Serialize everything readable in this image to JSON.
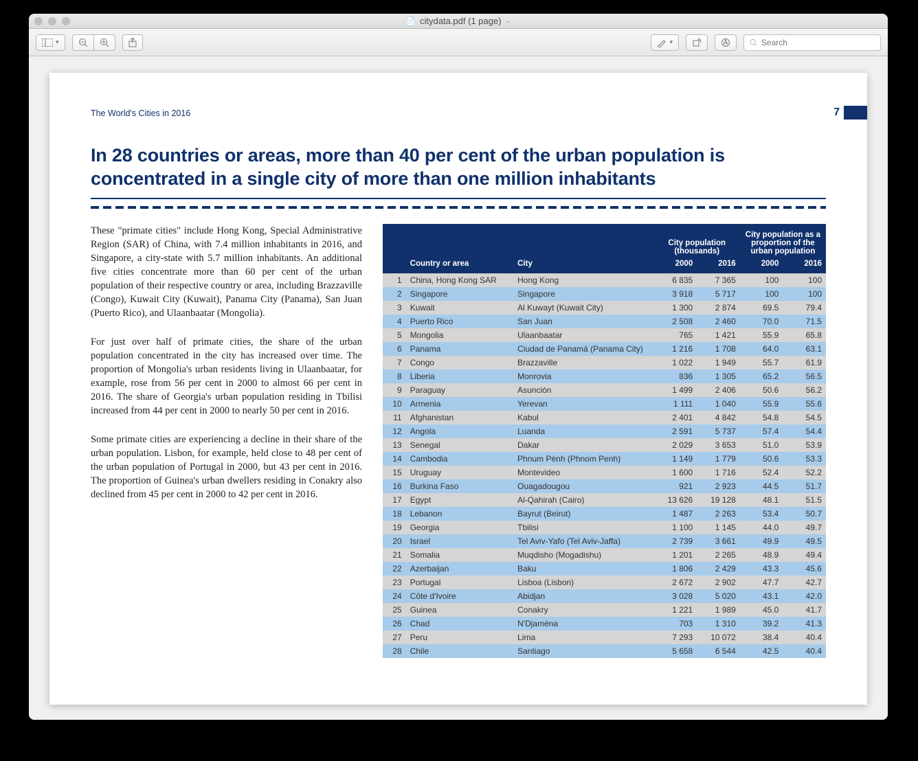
{
  "window": {
    "title": "citydata.pdf (1 page)",
    "search_placeholder": "Search"
  },
  "doc": {
    "running_header": "The World's Cities in 2016",
    "page_number": "7",
    "headline": "In 28 countries or areas, more than 40 per cent of the urban population is concentrated in a single city of more than one million inhabitants",
    "paragraphs": [
      "These \"primate cities\" include Hong Kong, Special Administrative Region (SAR) of China, with 7.4 million inhabitants in 2016, and Singapore, a city-state with 5.7 million inhabitants.  An additional five cities concentrate more than 60 per cent of the urban population of their respective country or area, including Brazzaville (Congo), Kuwait City (Kuwait), Panama City (Panama), San Juan (Puerto Rico), and Ulaanbaatar (Mongolia).",
      "For just over half of primate cities, the share of the urban population concentrated in the city has increased over time.  The proportion of Mongolia's urban residents living in Ulaanbaatar, for example, rose from 56 per cent in 2000 to almost 66 per cent in 2016.  The share of Georgia's urban population residing in Tbilisi increased from 44 per cent in 2000 to nearly 50 per cent in 2016.",
      "Some primate cities are experiencing a decline in their share of the urban population.  Lisbon, for example, held close to 48 per cent of the urban population of Portugal in 2000, but 43 per cent in 2016.  The proportion of Guinea's urban dwellers residing in Conakry also declined from 45 per cent in 2000 to 42 per cent in 2016."
    ],
    "table": {
      "group_headers": [
        "City population (thousands)",
        "City population as a proportion of the urban population"
      ],
      "columns": [
        "Country or area",
        "City",
        "2000",
        "2016",
        "2000",
        "2016"
      ],
      "row_colors": {
        "odd": "#d5d5d5",
        "even": "#a7cbea"
      },
      "header_bg": "#10316b",
      "rows": [
        {
          "n": 1,
          "country": "China, Hong Kong SAR",
          "city": "Hong Kong",
          "p2000": "6 835",
          "p2016": "7 365",
          "s2000": "100",
          "s2016": "100"
        },
        {
          "n": 2,
          "country": "Singapore",
          "city": "Singapore",
          "p2000": "3 918",
          "p2016": "5 717",
          "s2000": "100",
          "s2016": "100"
        },
        {
          "n": 3,
          "country": "Kuwait",
          "city": "Al Kuwayt (Kuwait City)",
          "p2000": "1 300",
          "p2016": "2 874",
          "s2000": "69.5",
          "s2016": "79.4"
        },
        {
          "n": 4,
          "country": "Puerto Rico",
          "city": "San Juan",
          "p2000": "2 508",
          "p2016": "2 460",
          "s2000": "70.0",
          "s2016": "71.5"
        },
        {
          "n": 5,
          "country": "Mongolia",
          "city": "Ulaanbaatar",
          "p2000": "765",
          "p2016": "1 421",
          "s2000": "55.9",
          "s2016": "65.8"
        },
        {
          "n": 6,
          "country": "Panama",
          "city": "Ciudad de Panamá (Panama City)",
          "p2000": "1 216",
          "p2016": "1 708",
          "s2000": "64.0",
          "s2016": "63.1"
        },
        {
          "n": 7,
          "country": "Congo",
          "city": "Brazzaville",
          "p2000": "1 022",
          "p2016": "1 949",
          "s2000": "55.7",
          "s2016": "61.9"
        },
        {
          "n": 8,
          "country": "Liberia",
          "city": "Monrovia",
          "p2000": "836",
          "p2016": "1 305",
          "s2000": "65.2",
          "s2016": "56.5"
        },
        {
          "n": 9,
          "country": "Paraguay",
          "city": "Asunción",
          "p2000": "1 499",
          "p2016": "2 406",
          "s2000": "50.6",
          "s2016": "56.2"
        },
        {
          "n": 10,
          "country": "Armenia",
          "city": "Yerevan",
          "p2000": "1 111",
          "p2016": "1 040",
          "s2000": "55.9",
          "s2016": "55.6"
        },
        {
          "n": 11,
          "country": "Afghanistan",
          "city": "Kabul",
          "p2000": "2 401",
          "p2016": "4 842",
          "s2000": "54.8",
          "s2016": "54.5"
        },
        {
          "n": 12,
          "country": "Angola",
          "city": "Luanda",
          "p2000": "2 591",
          "p2016": "5 737",
          "s2000": "57.4",
          "s2016": "54.4"
        },
        {
          "n": 13,
          "country": "Senegal",
          "city": "Dakar",
          "p2000": "2 029",
          "p2016": "3 653",
          "s2000": "51.0",
          "s2016": "53.9"
        },
        {
          "n": 14,
          "country": "Cambodia",
          "city": "Phnum Pénh (Phnom Penh)",
          "p2000": "1 149",
          "p2016": "1 779",
          "s2000": "50.6",
          "s2016": "53.3"
        },
        {
          "n": 15,
          "country": "Uruguay",
          "city": "Montevideo",
          "p2000": "1 600",
          "p2016": "1 716",
          "s2000": "52.4",
          "s2016": "52.2"
        },
        {
          "n": 16,
          "country": "Burkina Faso",
          "city": "Ouagadougou",
          "p2000": "921",
          "p2016": "2 923",
          "s2000": "44.5",
          "s2016": "51.7"
        },
        {
          "n": 17,
          "country": "Egypt",
          "city": "Al-Qahirah (Cairo)",
          "p2000": "13 626",
          "p2016": "19 128",
          "s2000": "48.1",
          "s2016": "51.5"
        },
        {
          "n": 18,
          "country": "Lebanon",
          "city": "Bayrut (Beirut)",
          "p2000": "1 487",
          "p2016": "2 263",
          "s2000": "53.4",
          "s2016": "50.7"
        },
        {
          "n": 19,
          "country": "Georgia",
          "city": "Tbilisi",
          "p2000": "1 100",
          "p2016": "1 145",
          "s2000": "44.0",
          "s2016": "49.7"
        },
        {
          "n": 20,
          "country": "Israel",
          "city": "Tel Aviv-Yafo (Tel Aviv-Jaffa)",
          "p2000": "2 739",
          "p2016": "3 661",
          "s2000": "49.9",
          "s2016": "49.5"
        },
        {
          "n": 21,
          "country": "Somalia",
          "city": "Muqdisho (Mogadishu)",
          "p2000": "1 201",
          "p2016": "2 265",
          "s2000": "48.9",
          "s2016": "49.4"
        },
        {
          "n": 22,
          "country": "Azerbaijan",
          "city": "Baku",
          "p2000": "1 806",
          "p2016": "2 429",
          "s2000": "43.3",
          "s2016": "45.6"
        },
        {
          "n": 23,
          "country": "Portugal",
          "city": "Lisboa (Lisbon)",
          "p2000": "2 672",
          "p2016": "2 902",
          "s2000": "47.7",
          "s2016": "42.7"
        },
        {
          "n": 24,
          "country": "Côte d'Ivoire",
          "city": "Abidjan",
          "p2000": "3 028",
          "p2016": "5 020",
          "s2000": "43.1",
          "s2016": "42.0"
        },
        {
          "n": 25,
          "country": "Guinea",
          "city": "Conakry",
          "p2000": "1 221",
          "p2016": "1 989",
          "s2000": "45.0",
          "s2016": "41.7"
        },
        {
          "n": 26,
          "country": "Chad",
          "city": "N'Djaména",
          "p2000": "703",
          "p2016": "1 310",
          "s2000": "39.2",
          "s2016": "41.3"
        },
        {
          "n": 27,
          "country": "Peru",
          "city": "Lima",
          "p2000": "7 293",
          "p2016": "10 072",
          "s2000": "38.4",
          "s2016": "40.4"
        },
        {
          "n": 28,
          "country": "Chile",
          "city": "Santiago",
          "p2000": "5 658",
          "p2016": "6 544",
          "s2000": "42.5",
          "s2016": "40.4"
        }
      ]
    }
  },
  "colors": {
    "brand": "#10316b",
    "row_odd": "#d5d5d5",
    "row_even": "#a7cbea",
    "window_chrome": "#e8e8e8"
  }
}
